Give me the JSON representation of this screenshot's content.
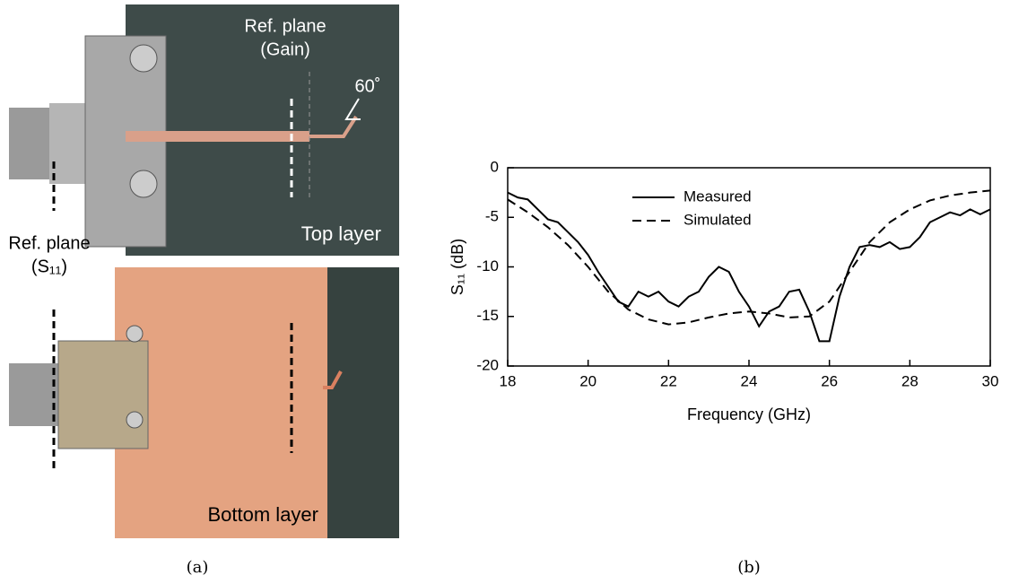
{
  "photo": {
    "top_ref_label": [
      "Ref. plane",
      "(Gain)"
    ],
    "angle": "60˚",
    "top_layer": "Top layer",
    "s11_ref_label": [
      "Ref. plane",
      "(S₁₁)"
    ],
    "bottom_layer": "Bottom layer"
  },
  "captions": [
    "(a)",
    "(b)"
  ],
  "chart_data": {
    "type": "line",
    "xlabel": "Frequency (GHz)",
    "ylabel": "S₁₁ (dB)",
    "xlim": [
      18,
      30
    ],
    "xticks": [
      18,
      20,
      22,
      24,
      26,
      28,
      30
    ],
    "ylim": [
      -20,
      0
    ],
    "yticks": [
      0,
      -5,
      -10,
      -15,
      -20
    ],
    "series": [
      {
        "name": "Measured",
        "color": "#000000",
        "dash": "solid",
        "x": [
          18,
          18.25,
          18.5,
          18.75,
          19,
          19.25,
          19.5,
          19.75,
          20,
          20.25,
          20.5,
          20.75,
          21,
          21.25,
          21.5,
          21.75,
          22,
          22.25,
          22.5,
          22.75,
          23,
          23.25,
          23.5,
          23.75,
          24,
          24.25,
          24.5,
          24.75,
          25,
          25.25,
          25.5,
          25.75,
          26,
          26.25,
          26.5,
          26.75,
          27,
          27.25,
          27.5,
          27.75,
          28,
          28.25,
          28.5,
          28.75,
          29,
          29.25,
          29.5,
          29.75,
          30
        ],
        "values": [
          -2.5,
          -3.0,
          -3.2,
          -4.2,
          -5.2,
          -5.5,
          -6.5,
          -7.5,
          -8.8,
          -10.5,
          -12,
          -13.5,
          -14,
          -12.5,
          -13,
          -12.5,
          -13.5,
          -14,
          -13,
          -12.5,
          -11,
          -10,
          -10.5,
          -12.5,
          -14,
          -16,
          -14.5,
          -14,
          -12.5,
          -12.3,
          -14.5,
          -17.5,
          -17.5,
          -13,
          -10,
          -8,
          -7.8,
          -8,
          -7.5,
          -8.2,
          -8,
          -7,
          -5.5,
          -5,
          -4.5,
          -4.8,
          -4.2,
          -4.7,
          -4.2
        ]
      },
      {
        "name": "Simulated",
        "color": "#000000",
        "dash": "dashed",
        "x": [
          18,
          18.5,
          19,
          19.5,
          20,
          20.5,
          21,
          21.5,
          22,
          22.5,
          23,
          23.5,
          24,
          24.5,
          25,
          25.5,
          26,
          26.5,
          27,
          27.5,
          28,
          28.5,
          29,
          29.5,
          30
        ],
        "values": [
          -3.2,
          -4.5,
          -6,
          -7.8,
          -10,
          -12.5,
          -14.3,
          -15.3,
          -15.8,
          -15.6,
          -15.1,
          -14.7,
          -14.5,
          -14.7,
          -15.1,
          -15,
          -13.5,
          -10.5,
          -7.5,
          -5.5,
          -4.2,
          -3.3,
          -2.8,
          -2.5,
          -2.3
        ]
      }
    ]
  }
}
